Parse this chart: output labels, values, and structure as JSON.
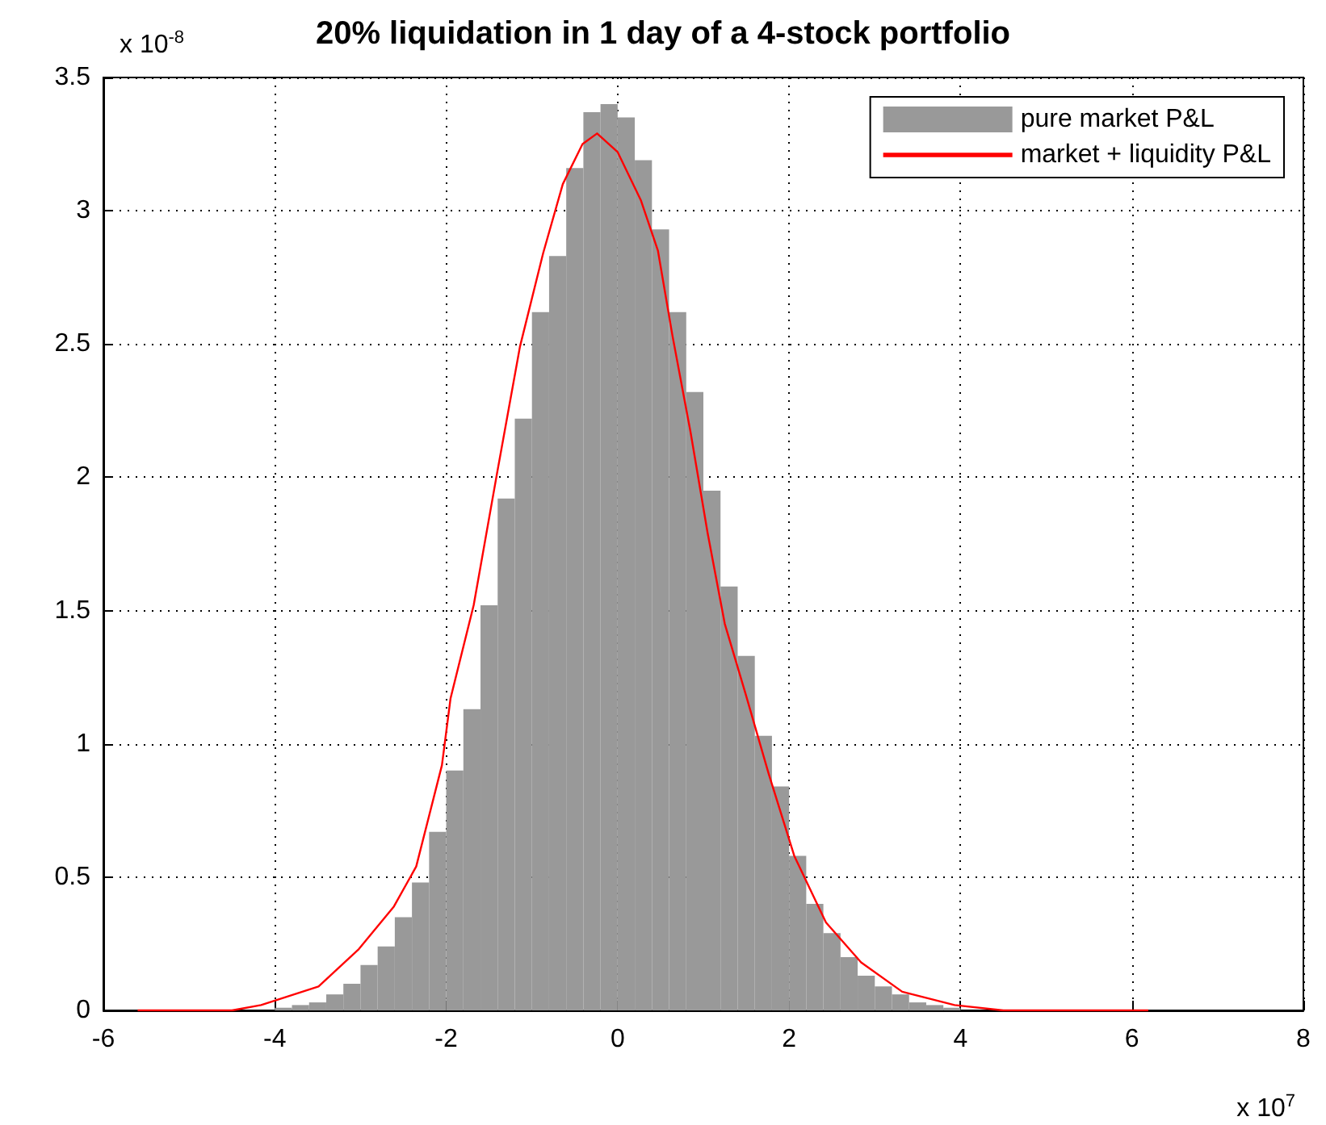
{
  "chart_data": {
    "type": "histogram",
    "title": "20% liquidation in 1 day of a 4-stock portfolio",
    "bins": [
      -4.0,
      -3.8,
      -3.6,
      -3.4,
      -3.2,
      -3.0,
      -2.8,
      -2.6,
      -2.4,
      -2.2,
      -2.0,
      -1.8,
      -1.6,
      -1.4,
      -1.2,
      -1.0,
      -0.8,
      -0.6,
      -0.4,
      -0.2,
      0.0,
      0.2,
      0.4,
      0.6,
      0.8,
      1.0,
      1.2,
      1.4,
      1.6,
      1.8,
      2.0,
      2.2,
      2.4,
      2.6,
      2.8,
      3.0,
      3.2,
      3.4,
      3.6,
      3.8,
      4.0
    ],
    "series": [
      {
        "name": "pure market P&L",
        "color": "#999999",
        "values": [
          0.01,
          0.02,
          0.03,
          0.06,
          0.1,
          0.17,
          0.24,
          0.35,
          0.48,
          0.67,
          0.9,
          1.13,
          1.52,
          1.92,
          2.22,
          2.62,
          2.83,
          3.16,
          3.37,
          3.4,
          3.35,
          3.19,
          2.93,
          2.62,
          2.32,
          1.95,
          1.59,
          1.33,
          1.03,
          0.84,
          0.58,
          0.4,
          0.29,
          0.2,
          0.13,
          0.09,
          0.06,
          0.03,
          0.02,
          0.01
        ]
      },
      {
        "name": "market + liquidity P&L",
        "type": "line",
        "color": "#ff0000",
        "x": [
          -5.6,
          -4.5,
          -4.16,
          -3.49,
          -3.02,
          -2.61,
          -2.35,
          -2.05,
          -1.95,
          -1.68,
          -1.41,
          -1.14,
          -0.87,
          -0.64,
          -0.41,
          -0.24,
          0,
          0.27,
          0.47,
          0.64,
          0.85,
          1.05,
          1.25,
          1.49,
          1.76,
          2.06,
          2.43,
          2.84,
          3.32,
          3.93,
          4.5,
          6.19
        ],
        "values": [
          0,
          0,
          0.02,
          0.09,
          0.23,
          0.39,
          0.54,
          0.92,
          1.17,
          1.52,
          2.01,
          2.49,
          2.84,
          3.1,
          3.25,
          3.29,
          3.22,
          3.04,
          2.85,
          2.53,
          2.17,
          1.79,
          1.45,
          1.19,
          0.89,
          0.58,
          0.33,
          0.18,
          0.07,
          0.02,
          0,
          0
        ]
      }
    ],
    "xlim": [
      -6,
      8
    ],
    "xticks": [
      -6,
      -4,
      -2,
      0,
      2,
      4,
      6,
      8
    ],
    "ylim": [
      0,
      3.5
    ],
    "yticks": [
      0,
      0.5,
      1,
      1.5,
      2,
      2.5,
      3,
      3.5
    ],
    "grid": true,
    "legend": "top right",
    "marker": "none",
    "line_style": "solid",
    "annotations": [
      "x 10$^{-8}$",
      "x 10$^{7}$"
    ]
  }
}
